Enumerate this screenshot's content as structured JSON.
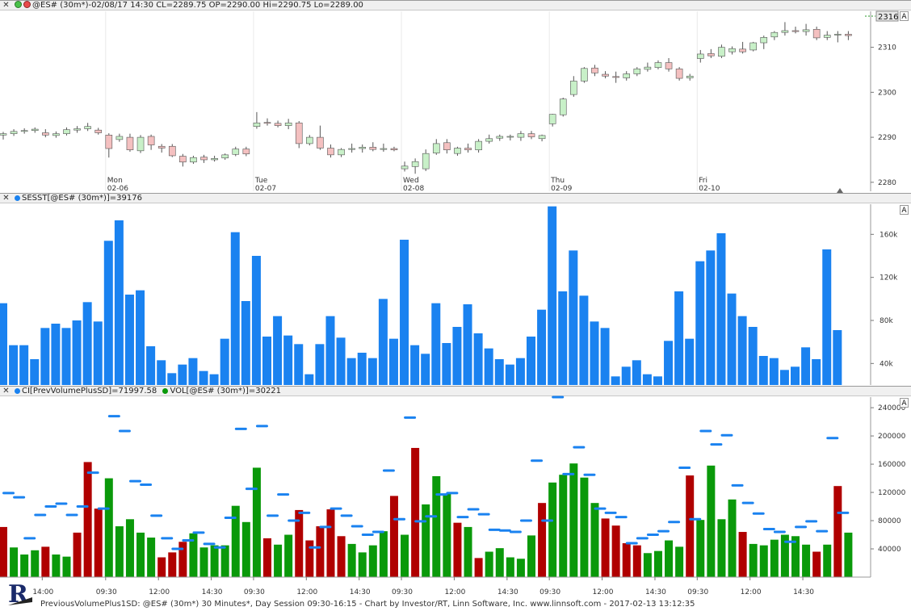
{
  "headers": {
    "price": "@ES# (30m*)-02/08/17 14:30 CL=2289.75 OP=2290.00 Hi=2290.75 Lo=2289.00",
    "sesst": "SESST[@ES# (30m*)]=39176",
    "vol_ci": "CI[PrevVolumePlusSD]=71997.58",
    "vol_vol": "VOL[@ES# (30m*)]=30221"
  },
  "buttons": {
    "auto": "A",
    "close": "✕"
  },
  "footer": "PreviousVolumePlus1SD: @ES# (30m*) 30 Minutes*, Day Session 09:30-16:15 - Chart by Investor/RT, Linn Software, Inc. www.linnsoft.com - 2017-02-13 13:12:35",
  "logo_letter": "R",
  "colors": {
    "up_candle": "#c8f0c8",
    "down_candle": "#f4c0c0",
    "candle_outline": "#555555",
    "sesst_bar": "#1a82f0",
    "vol_up": "#0a990a",
    "vol_down": "#b00000",
    "ci_dash": "#1a82f0"
  },
  "chart_data": [
    {
      "type": "candlestick",
      "name": "@ES# (30m*)",
      "ylim": [
        2278,
        2318
      ],
      "yticks": [
        2280,
        2290,
        2300,
        2310
      ],
      "last_value_label": "2316",
      "day_labels": [
        {
          "bar": 10,
          "day": "Mon",
          "date": "02-06"
        },
        {
          "bar": 24,
          "day": "Tue",
          "date": "02-07"
        },
        {
          "bar": 38,
          "day": "Wed",
          "date": "02-08"
        },
        {
          "bar": 52,
          "day": "Thu",
          "date": "02-09"
        },
        {
          "bar": 66,
          "day": "Fri",
          "date": "02-10"
        }
      ],
      "ohlc": [
        [
          2290.5,
          2291.2,
          2289.5,
          2290.8
        ],
        [
          2290.8,
          2291.8,
          2290.3,
          2291.3
        ],
        [
          2291.3,
          2292.0,
          2290.8,
          2291.5
        ],
        [
          2291.5,
          2292.2,
          2291.0,
          2291.8
        ],
        [
          2291.0,
          2291.8,
          2290.0,
          2290.5
        ],
        [
          2290.4,
          2291.3,
          2289.9,
          2290.8
        ],
        [
          2290.8,
          2292.2,
          2290.4,
          2291.7
        ],
        [
          2291.6,
          2292.5,
          2291.0,
          2291.9
        ],
        [
          2291.9,
          2293.2,
          2291.4,
          2292.4
        ],
        [
          2291.6,
          2292.1,
          2290.6,
          2291.0
        ],
        [
          2290.5,
          2290.9,
          2285.5,
          2287.5
        ],
        [
          2289.5,
          2290.8,
          2289.0,
          2290.2
        ],
        [
          2290.0,
          2290.8,
          2286.8,
          2287.2
        ],
        [
          2287.0,
          2290.5,
          2286.5,
          2290.0
        ],
        [
          2290.2,
          2290.6,
          2287.2,
          2288.3
        ],
        [
          2288.0,
          2288.5,
          2286.6,
          2287.6
        ],
        [
          2288.0,
          2288.5,
          2285.6,
          2285.9
        ],
        [
          2285.8,
          2286.3,
          2283.5,
          2284.5
        ],
        [
          2284.5,
          2285.9,
          2284.1,
          2285.5
        ],
        [
          2285.6,
          2286.1,
          2284.3,
          2285.0
        ],
        [
          2285.0,
          2285.9,
          2284.6,
          2285.3
        ],
        [
          2285.4,
          2286.4,
          2285.0,
          2286.1
        ],
        [
          2286.2,
          2287.9,
          2285.8,
          2287.4
        ],
        [
          2287.4,
          2287.9,
          2285.8,
          2286.3
        ],
        [
          2292.4,
          2295.6,
          2291.9,
          2293.2
        ],
        [
          2293.3,
          2294.2,
          2292.6,
          2293.1
        ],
        [
          2293.1,
          2293.7,
          2292.2,
          2292.6
        ],
        [
          2292.6,
          2294.1,
          2291.8,
          2293.2
        ],
        [
          2293.2,
          2293.6,
          2287.6,
          2288.6
        ],
        [
          2288.6,
          2290.5,
          2288.2,
          2290.0
        ],
        [
          2290.0,
          2292.6,
          2287.2,
          2287.6
        ],
        [
          2287.6,
          2288.4,
          2285.5,
          2286.1
        ],
        [
          2286.1,
          2287.6,
          2285.6,
          2287.3
        ],
        [
          2287.3,
          2288.6,
          2286.6,
          2287.5
        ],
        [
          2287.5,
          2288.4,
          2286.6,
          2287.8
        ],
        [
          2287.8,
          2288.9,
          2286.9,
          2287.3
        ],
        [
          2287.3,
          2288.6,
          2286.8,
          2287.5
        ],
        [
          2287.5,
          2287.9,
          2286.9,
          2287.2
        ],
        [
          2283.0,
          2284.6,
          2282.4,
          2283.6
        ],
        [
          2283.5,
          2285.3,
          2281.9,
          2284.6
        ],
        [
          2283.0,
          2287.3,
          2282.5,
          2286.4
        ],
        [
          2286.5,
          2289.6,
          2286.1,
          2288.6
        ],
        [
          2288.8,
          2289.6,
          2286.4,
          2287.2
        ],
        [
          2286.4,
          2287.9,
          2285.9,
          2287.6
        ],
        [
          2287.6,
          2288.6,
          2286.6,
          2287.2
        ],
        [
          2287.2,
          2289.6,
          2286.6,
          2289.1
        ],
        [
          2289.1,
          2290.6,
          2288.6,
          2289.7
        ],
        [
          2289.8,
          2290.6,
          2289.2,
          2290.2
        ],
        [
          2290.1,
          2290.6,
          2289.3,
          2290.2
        ],
        [
          2290.0,
          2291.4,
          2289.2,
          2290.8
        ],
        [
          2290.8,
          2291.4,
          2289.6,
          2290.1
        ],
        [
          2289.7,
          2290.6,
          2289.1,
          2290.4
        ],
        [
          2293.0,
          2295.2,
          2292.4,
          2295.1
        ],
        [
          2295.0,
          2298.8,
          2294.6,
          2298.5
        ],
        [
          2299.5,
          2303.6,
          2299.0,
          2302.5
        ],
        [
          2302.5,
          2305.6,
          2302.1,
          2305.3
        ],
        [
          2305.4,
          2306.1,
          2303.6,
          2304.3
        ],
        [
          2304.0,
          2304.7,
          2303.1,
          2303.6
        ],
        [
          2303.5,
          2304.6,
          2302.1,
          2303.3
        ],
        [
          2303.2,
          2304.7,
          2302.6,
          2304.1
        ],
        [
          2304.1,
          2305.6,
          2303.6,
          2305.2
        ],
        [
          2305.1,
          2306.6,
          2304.6,
          2305.6
        ],
        [
          2305.5,
          2307.1,
          2305.1,
          2306.6
        ],
        [
          2306.6,
          2307.6,
          2304.6,
          2305.2
        ],
        [
          2305.2,
          2305.6,
          2302.6,
          2303.1
        ],
        [
          2303.2,
          2304.1,
          2302.6,
          2303.6
        ],
        [
          2307.5,
          2309.4,
          2306.6,
          2308.5
        ],
        [
          2308.6,
          2309.6,
          2307.6,
          2308.1
        ],
        [
          2308.0,
          2310.6,
          2307.6,
          2310.0
        ],
        [
          2309.0,
          2310.2,
          2308.4,
          2309.7
        ],
        [
          2309.6,
          2311.2,
          2308.6,
          2309.0
        ],
        [
          2309.4,
          2311.2,
          2309.1,
          2311.0
        ],
        [
          2311.0,
          2312.6,
          2309.6,
          2312.2
        ],
        [
          2312.3,
          2313.6,
          2311.6,
          2313.3
        ],
        [
          2313.3,
          2315.6,
          2312.6,
          2313.7
        ],
        [
          2313.7,
          2314.6,
          2313.1,
          2313.5
        ],
        [
          2313.5,
          2315.2,
          2312.6,
          2313.9
        ],
        [
          2314.0,
          2314.6,
          2311.6,
          2312.1
        ],
        [
          2312.2,
          2313.6,
          2311.6,
          2312.7
        ],
        [
          2312.8,
          2313.6,
          2311.1,
          2312.9
        ],
        [
          2312.9,
          2313.6,
          2311.6,
          2312.6
        ]
      ]
    },
    {
      "type": "bar",
      "name": "SESST[@ES# (30m*)]",
      "ylim": [
        20000,
        188000
      ],
      "yticks": [
        40000,
        80000,
        120000,
        160000
      ],
      "ytick_labels": [
        "40k",
        "80k",
        "120k",
        "160k"
      ],
      "values": [
        96000,
        57000,
        57000,
        44000,
        73000,
        77000,
        73000,
        80000,
        97000,
        79000,
        154000,
        173000,
        104000,
        108000,
        56000,
        43000,
        31000,
        39000,
        45000,
        33000,
        30000,
        63000,
        162000,
        98000,
        140000,
        65000,
        84000,
        66000,
        58000,
        30000,
        58000,
        84000,
        64000,
        45000,
        50000,
        45000,
        100000,
        63000,
        155000,
        57000,
        49000,
        96000,
        59000,
        74000,
        95000,
        68000,
        54000,
        44000,
        39000,
        45000,
        65000,
        90000,
        186000,
        107000,
        145000,
        103000,
        79000,
        73000,
        28000,
        37000,
        43000,
        30000,
        28000,
        61000,
        107000,
        63000,
        135000,
        145000,
        161000,
        105000,
        84000,
        74000,
        47000,
        45000,
        34000,
        37000,
        55000,
        44000,
        146000,
        71000
      ]
    },
    {
      "type": "bar",
      "name": "VOL[@ES# (30m*)]",
      "ylim": [
        0,
        255000
      ],
      "yticks": [
        40000,
        80000,
        120000,
        160000,
        200000,
        240000
      ],
      "yticks_labels": [
        "40000",
        "80000",
        "120000",
        "160000",
        "200000",
        "240000"
      ],
      "x_tick_labels": [
        {
          "bar": 4,
          "label": "14:00"
        },
        {
          "bar": 10,
          "label": "09:30"
        },
        {
          "bar": 15,
          "label": "12:00"
        },
        {
          "bar": 20,
          "label": "14:30"
        },
        {
          "bar": 24,
          "label": "09:30"
        },
        {
          "bar": 29,
          "label": "12:00"
        },
        {
          "bar": 34,
          "label": "14:30"
        },
        {
          "bar": 38,
          "label": "09:30"
        },
        {
          "bar": 43,
          "label": "12:00"
        },
        {
          "bar": 48,
          "label": "14:30"
        },
        {
          "bar": 52,
          "label": "09:30"
        },
        {
          "bar": 57,
          "label": "12:00"
        },
        {
          "bar": 62,
          "label": "14:30"
        },
        {
          "bar": 66,
          "label": "09:30"
        },
        {
          "bar": 71,
          "label": "12:00"
        },
        {
          "bar": 76,
          "label": "14:30"
        }
      ],
      "values": [
        71000,
        42000,
        32000,
        38000,
        43000,
        32000,
        29000,
        63000,
        163000,
        97000,
        140000,
        72000,
        82000,
        63000,
        56000,
        28000,
        35000,
        50000,
        62000,
        42000,
        45000,
        45000,
        101000,
        78000,
        155000,
        55000,
        46000,
        60000,
        95000,
        52000,
        72000,
        96000,
        58000,
        47000,
        35000,
        45000,
        65000,
        115000,
        60000,
        183000,
        103000,
        143000,
        118000,
        77000,
        71000,
        27000,
        36000,
        41000,
        28000,
        26000,
        59000,
        105000,
        134000,
        145000,
        161000,
        141000,
        105000,
        83000,
        73000,
        48000,
        45000,
        34000,
        37000,
        52000,
        43000,
        144000,
        81000,
        158000,
        82000,
        110000,
        64000,
        47000,
        45000,
        53000,
        60000,
        58000,
        46000,
        36000,
        46000,
        129000,
        63000
      ],
      "up": [
        0,
        1,
        1,
        1,
        0,
        1,
        1,
        0,
        0,
        0,
        1,
        1,
        1,
        1,
        1,
        0,
        0,
        0,
        1,
        1,
        1,
        1,
        1,
        1,
        1,
        0,
        1,
        1,
        0,
        0,
        0,
        0,
        0,
        1,
        1,
        1,
        1,
        0,
        1,
        0,
        1,
        1,
        1,
        0,
        1,
        0,
        1,
        1,
        1,
        1,
        1,
        0,
        1,
        1,
        1,
        1,
        1,
        0,
        0,
        0,
        0,
        1,
        1,
        1,
        1,
        0,
        1,
        1,
        1,
        1,
        0,
        1,
        1,
        1,
        1,
        1,
        1,
        0,
        1,
        0,
        1
      ],
      "ci_line": [
        119000,
        113000,
        55000,
        88000,
        100000,
        104000,
        88000,
        100000,
        148000,
        97000,
        228000,
        207000,
        136000,
        131000,
        87000,
        55000,
        40000,
        52000,
        63000,
        47000,
        42000,
        84000,
        210000,
        125000,
        214000,
        87000,
        117000,
        80000,
        91000,
        42000,
        71000,
        97000,
        87000,
        72000,
        60000,
        64000,
        151000,
        82000,
        226000,
        79000,
        86000,
        117000,
        119000,
        85000,
        96000,
        89000,
        67000,
        66000,
        64000,
        80000,
        165000,
        80000,
        255000,
        146000,
        184000,
        145000,
        97000,
        91000,
        85000,
        48000,
        55000,
        60000,
        65000,
        78000,
        155000,
        82000,
        207000,
        188000,
        201000,
        130000,
        105000,
        90000,
        68000,
        64000,
        50000,
        71000,
        79000,
        65000,
        197000,
        91000
      ]
    }
  ]
}
